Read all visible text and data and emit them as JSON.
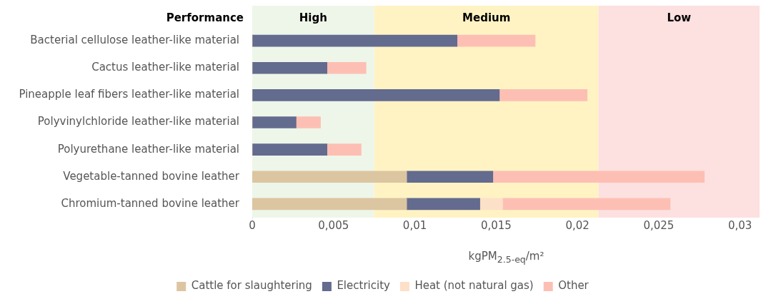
{
  "chart_data": {
    "type": "bar",
    "orientation": "horizontal",
    "stacked": true,
    "categories": [
      "Bacterial cellulose leather-like material",
      "Cactus leather-like material",
      "Pineapple leaf fibers leather-like material",
      "Polyvinylchloride leather-like material",
      "Polyurethane leather-like material",
      "Vegetable-tanned bovine leather",
      "Chromium-tanned bovine leather"
    ],
    "series": [
      {
        "name": "Cattle for slaughtering",
        "color": "#dcc5a1",
        "values": [
          0,
          0,
          0,
          0,
          0,
          0.0095,
          0.0095
        ]
      },
      {
        "name": "Electricity",
        "color": "#636b8e",
        "values": [
          0.0126,
          0.0046,
          0.0152,
          0.0027,
          0.0046,
          0.0053,
          0.0045
        ]
      },
      {
        "name": "Heat (not natural gas)",
        "color": "#fde0c8",
        "values": [
          0,
          0,
          0,
          0,
          0,
          0,
          0.0014
        ]
      },
      {
        "name": "Other",
        "color": "#fdbfb4",
        "values": [
          0.0048,
          0.0024,
          0.0054,
          0.0015,
          0.0021,
          0.013,
          0.0103
        ]
      }
    ],
    "xlabel": "kgPM$_{2.5-eq}$/m²",
    "xlim": [
      0,
      0.0312
    ],
    "xticks": [
      0,
      {
        "value": 0.005,
        "label": "0,005"
      },
      {
        "value": 0.01,
        "label": "0,01"
      },
      {
        "value": 0.015,
        "label": "0,015"
      },
      {
        "value": 0.02,
        "label": "0,02"
      },
      {
        "value": 0.025,
        "label": "0,025"
      },
      {
        "value": 0.03,
        "label": "0,03"
      }
    ],
    "bands": [
      {
        "axis": "x",
        "from": 0,
        "to": 0.0075,
        "label": "High",
        "color": "#eef6e9"
      },
      {
        "axis": "x",
        "from": 0.0075,
        "to": 0.0213,
        "label": "Medium",
        "color": "#fff3c4"
      },
      {
        "axis": "x",
        "from": 0.0213,
        "to": 0.0312,
        "label": "Low",
        "color": "#fde0e0"
      }
    ],
    "annotations": [
      "Performance"
    ],
    "legend": "bottom",
    "grid": false
  }
}
